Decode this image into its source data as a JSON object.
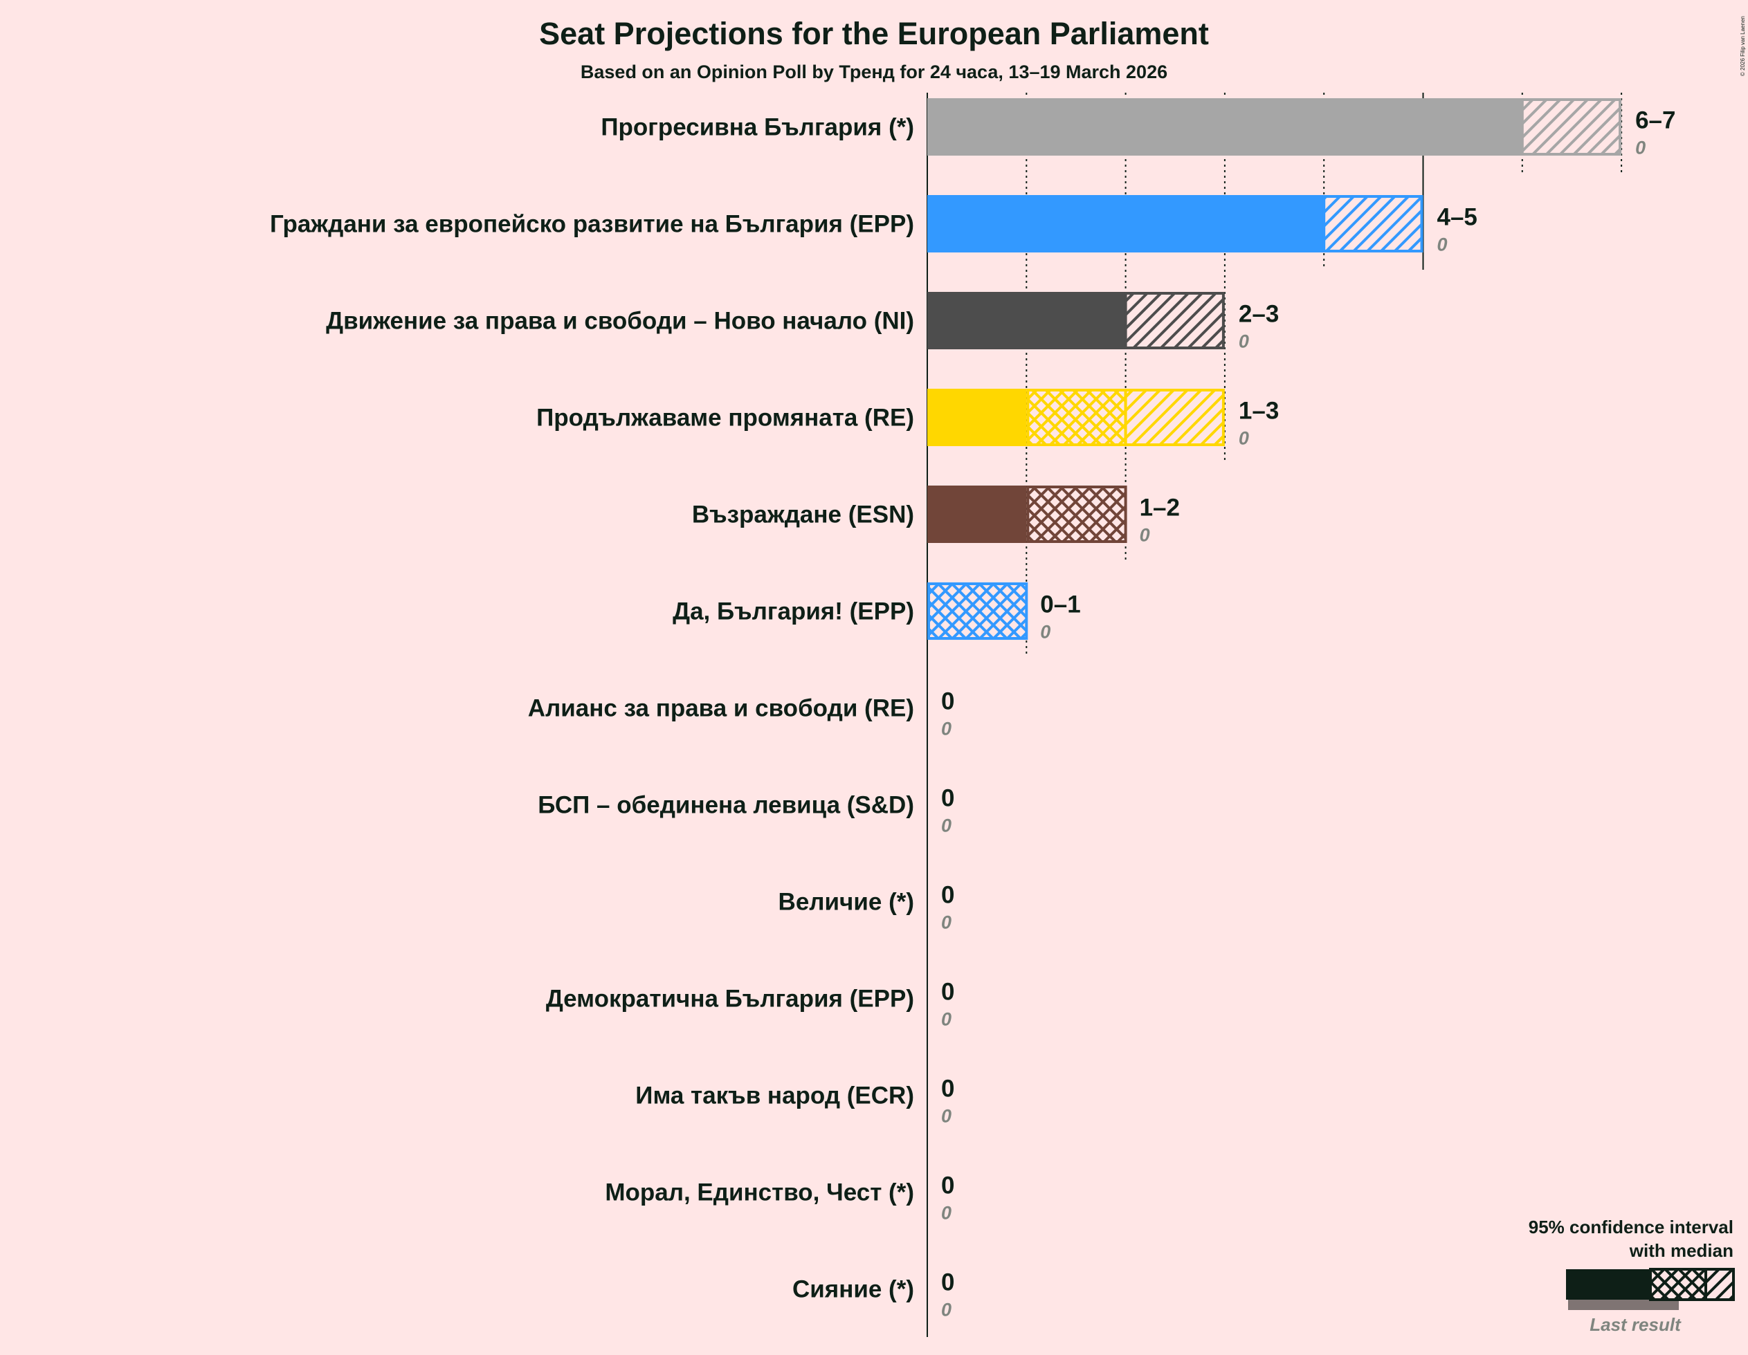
{
  "background": "#FFE6E6",
  "text_color": "#0E1F17",
  "copyright": "© 2026 Filip van Laenen",
  "chart_data": {
    "type": "bar",
    "title": "Seat Projections for the European Parliament",
    "subtitle": "Based on an Opinion Poll by Тренд for 24 часа, 13–19 March 2026",
    "xlim": [
      0,
      7
    ],
    "grid": "vertical dotted at every seat, solid at 5",
    "parties": [
      {
        "name": "Прогресивна България (*)",
        "low": 6,
        "median": 6,
        "high": 7,
        "range_label": "6–7",
        "last_result": 0,
        "last_label": "0",
        "color": "#A6A6A6"
      },
      {
        "name": "Граждани за европейско развитие на България (EPP)",
        "low": 4,
        "median": 4,
        "high": 5,
        "range_label": "4–5",
        "last_result": 0,
        "last_label": "0",
        "color": "#3399FF"
      },
      {
        "name": "Движение за права и свободи – Ново начало (NI)",
        "low": 2,
        "median": 2,
        "high": 3,
        "range_label": "2–3",
        "last_result": 0,
        "last_label": "0",
        "color": "#4D4D4D"
      },
      {
        "name": "Продължаваме промяната (RE)",
        "low": 1,
        "median": 2,
        "high": 3,
        "range_label": "1–3",
        "last_result": 0,
        "last_label": "0",
        "color": "#FFD700"
      },
      {
        "name": "Възраждане (ESN)",
        "low": 1,
        "median": 2,
        "high": 2,
        "range_label": "1–2",
        "last_result": 0,
        "last_label": "0",
        "color": "#714539"
      },
      {
        "name": "Да, България! (EPP)",
        "low": 0,
        "median": 1,
        "high": 1,
        "range_label": "0–1",
        "last_result": 0,
        "last_label": "0",
        "color": "#3399FF"
      },
      {
        "name": "Алианс за права и свободи (RE)",
        "low": 0,
        "median": 0,
        "high": 0,
        "range_label": "0",
        "last_result": 0,
        "last_label": "0",
        "color": "#FFD700"
      },
      {
        "name": "БСП – обединена левица (S&D)",
        "low": 0,
        "median": 0,
        "high": 0,
        "range_label": "0",
        "last_result": 0,
        "last_label": "0",
        "color": "#CC0000"
      },
      {
        "name": "Величие (*)",
        "low": 0,
        "median": 0,
        "high": 0,
        "range_label": "0",
        "last_result": 0,
        "last_label": "0",
        "color": "#A6A6A6"
      },
      {
        "name": "Демократична България (EPP)",
        "low": 0,
        "median": 0,
        "high": 0,
        "range_label": "0",
        "last_result": 0,
        "last_label": "0",
        "color": "#3399FF"
      },
      {
        "name": "Има такъв народ (ECR)",
        "low": 0,
        "median": 0,
        "high": 0,
        "range_label": "0",
        "last_result": 0,
        "last_label": "0",
        "color": "#0054A5"
      },
      {
        "name": "Морал, Единство, Чест (*)",
        "low": 0,
        "median": 0,
        "high": 0,
        "range_label": "0",
        "last_result": 0,
        "last_label": "0",
        "color": "#A6A6A6"
      },
      {
        "name": "Сияние (*)",
        "low": 0,
        "median": 0,
        "high": 0,
        "range_label": "0",
        "last_result": 0,
        "last_label": "0",
        "color": "#A6A6A6"
      }
    ],
    "legend": {
      "placement": "bottom-right",
      "line1": "95% confidence interval",
      "line2": "with median",
      "last_result_label": "Last result",
      "color": "#0E1F17",
      "last_result_color": "#7F7473"
    }
  }
}
